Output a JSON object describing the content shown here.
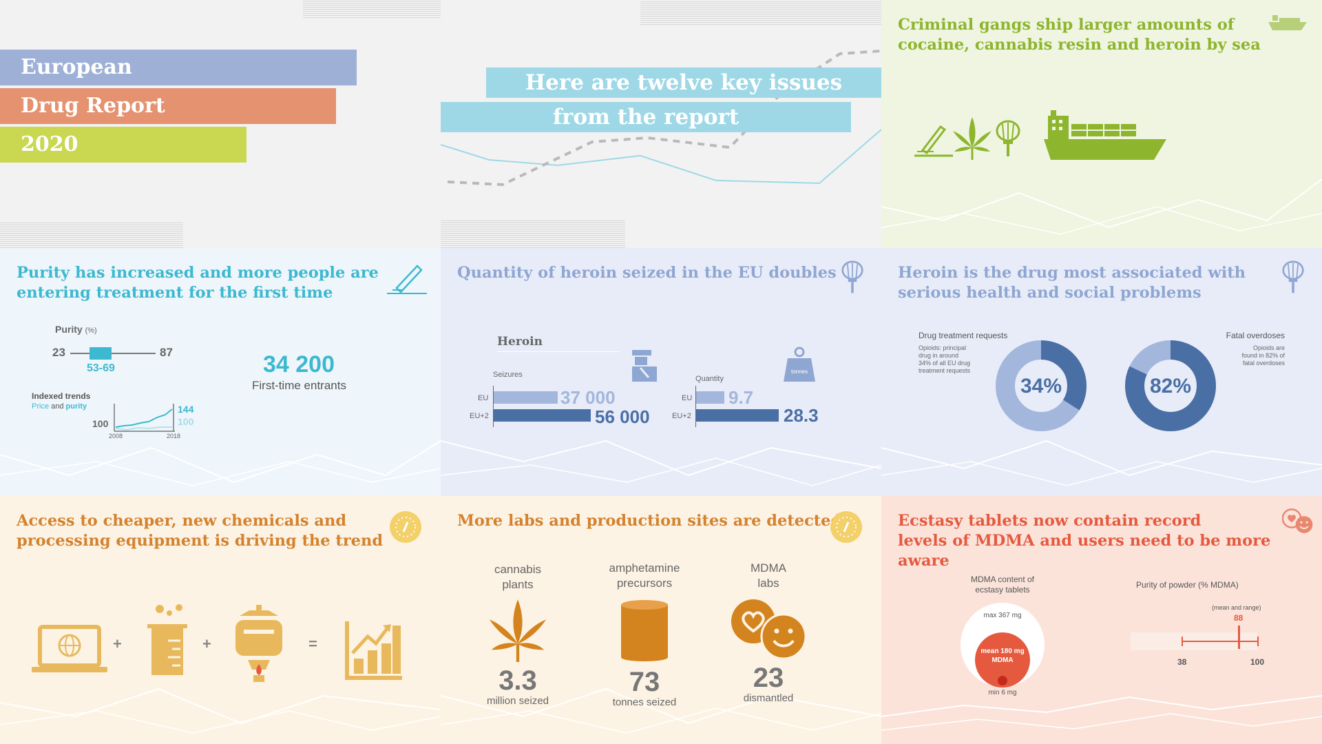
{
  "intro": {
    "title_lines": [
      "European",
      "Drug Report",
      "2020"
    ],
    "colors": [
      "#9eb0d6",
      "#e4926f",
      "#c9d751"
    ]
  },
  "key_issues": {
    "lines": [
      "Here are twelve key issues",
      "from the report"
    ],
    "color": "#9ed8e6"
  },
  "panels": {
    "sea": {
      "title_lines": [
        "Criminal gangs ship larger amounts of",
        "cocaine, cannabis resin and heroin by sea"
      ],
      "color": "#8db52d",
      "bg": "#eff5e0",
      "icons": [
        "ship-icon",
        "syringe-icon",
        "cannabis-leaf-icon",
        "poppy-icon",
        "container-ship-icon"
      ]
    },
    "purity": {
      "title_lines": [
        "Purity has increased and more people are",
        "entering treatment for the first time"
      ],
      "color": "#3cb8d0",
      "bg": "#eef6fb",
      "purity_label": "Purity",
      "purity_unit": "(%)",
      "range_min": "23",
      "range_max": "87",
      "range_iqr": "53-69",
      "trends_label": "Indexed trends",
      "trends_price": "Price",
      "trends_and": "and",
      "trends_purity": "purity",
      "trend_base": "100",
      "trend_price_end": "144",
      "trend_purity_end": "100",
      "year_start": "2008",
      "year_end": "2018",
      "entrants_value": "34 200",
      "entrants_label": "First-time entrants",
      "icon": "pencil-icon"
    },
    "heroin_seized": {
      "title": "Quantity of heroin seized in the EU doubles",
      "color": "#8ea6d2",
      "bg": "#e8ecf8",
      "section_label": "Heroin",
      "seizures_label": "Seizures",
      "quantity_label": "Quantity",
      "weight_label": "tonnes",
      "eu_label": "EU",
      "eu2_label": "EU+2",
      "seizures_eu": "37 000",
      "seizures_eu2": "56 000",
      "quantity_eu": "9.7",
      "quantity_eu2": "28.3",
      "bar_light": "#a3b6dc",
      "bar_dark": "#4a6fa5",
      "icons": [
        "poppy-icon",
        "police-officer-icon",
        "weight-icon"
      ]
    },
    "heroin_health": {
      "title_lines": [
        "Heroin is the drug most associated with",
        "serious health and social problems"
      ],
      "color": "#8ea6d2",
      "bg": "#e8ecf8",
      "left_heading": "Drug treatment requests",
      "left_note_lines": [
        "Opioids: principal",
        "drug in around",
        "34% of all EU drug",
        "treatment requests"
      ],
      "left_value": "34%",
      "left_percent": 34,
      "right_heading": "Fatal overdoses",
      "right_note_lines": [
        "Opioids are",
        "found in 82% of",
        "fatal overdoses"
      ],
      "right_value": "82%",
      "right_percent": 82,
      "ring_light": "#a3b6dc",
      "ring_dark": "#4a6fa5",
      "icon": "poppy-icon"
    },
    "chemicals": {
      "title_lines": [
        "Access to cheaper, new chemicals and",
        "processing equipment is driving the trend"
      ],
      "color": "#d4822e",
      "bg": "#fdf3e4",
      "operators": [
        "+",
        "+",
        "="
      ],
      "icons": [
        "laptop-globe-icon",
        "beaker-icon",
        "distillation-icon",
        "growth-chart-icon",
        "eu-stars-icon"
      ],
      "icon_color": "#e8b95c"
    },
    "labs": {
      "title": "More labs and production sites are detected",
      "color": "#d4822e",
      "bg": "#fdf3e4",
      "items": [
        {
          "label_lines": [
            "cannabis",
            "plants"
          ],
          "value": "3.3",
          "caption": "million seized",
          "icon": "cannabis-leaf-icon"
        },
        {
          "label_lines": [
            "amphetamine",
            "precursors"
          ],
          "value": "73",
          "caption": "tonnes seized",
          "icon": "barrel-icon"
        },
        {
          "label_lines": [
            "MDMA",
            "labs"
          ],
          "value": "23",
          "caption": "dismantled",
          "icon": "heart-smiley-icon"
        }
      ],
      "icon_color": "#d4841e"
    },
    "ecstasy": {
      "title_lines": [
        "Ecstasy tablets now contain record",
        "levels of MDMA and users need to be more aware"
      ],
      "color": "#e55a3f",
      "bg": "#fbe3da",
      "left_heading_lines": [
        "MDMA content of",
        "ecstasy tablets"
      ],
      "max_label": "max 367 mg",
      "mean_label_lines": [
        "mean 180 mg",
        "MDMA"
      ],
      "min_label": "min 6 mg",
      "right_heading": "Purity of powder (% MDMA)",
      "range_note": "(mean and range)",
      "mean_value": "88",
      "range_low": "38",
      "range_high": "100",
      "icon": "heart-smiley-icon"
    }
  }
}
